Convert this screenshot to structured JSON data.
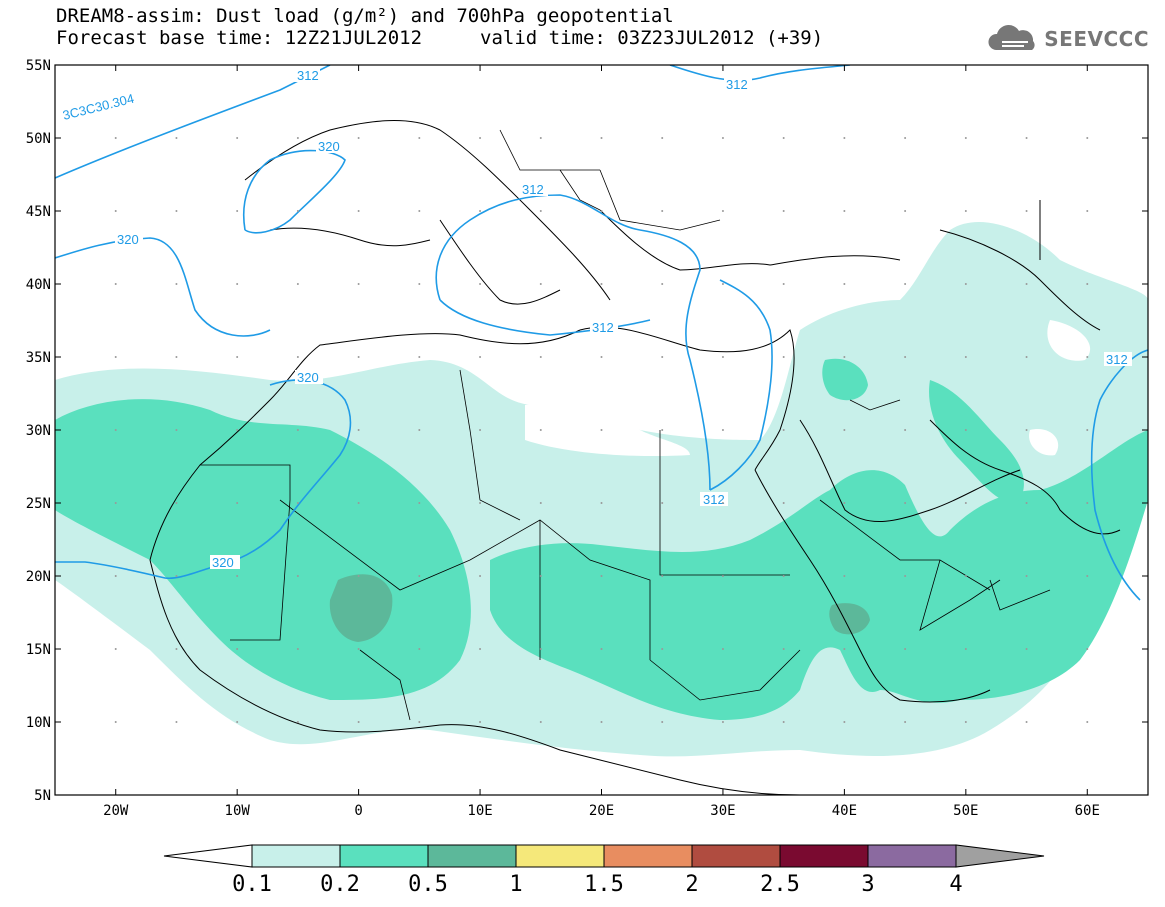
{
  "header": {
    "title_line1": "DREAM8-assim: Dust load (g/m²) and 700hPa geopotential",
    "forecast_base": "Forecast base time: 12Z21JUL2012",
    "valid_time": "valid time: 03Z23JUL2012 (+39)",
    "logo_text": "SEEVCCC"
  },
  "map": {
    "lat_labels": [
      "55N",
      "50N",
      "45N",
      "40N",
      "35N",
      "30N",
      "25N",
      "20N",
      "15N",
      "10N",
      "5N"
    ],
    "lon_labels": [
      "20W",
      "10W",
      "0",
      "10E",
      "20E",
      "30E",
      "40E",
      "50E",
      "60E"
    ],
    "contour_labels": [
      "312",
      "320",
      "312",
      "312",
      "312",
      "320",
      "320",
      "312",
      "312",
      "3C3C30.304"
    ]
  },
  "colorbar": {
    "labels": [
      "0.1",
      "0.2",
      "0.5",
      "1",
      "1.5",
      "2",
      "2.5",
      "3",
      "4"
    ],
    "colors": [
      "#c8f0ea",
      "#5ae0be",
      "#5cb89a",
      "#f5e87a",
      "#e88d60",
      "#b04c40",
      "#7a0a30",
      "#8b6aa0",
      "#a0a0a0"
    ]
  },
  "colors": {
    "dust_light": "#c8f0ea",
    "dust_medium": "#5ae0be",
    "dust_heavy": "#5cb89a",
    "contour": "#1f9be6",
    "coastline": "#000000"
  }
}
